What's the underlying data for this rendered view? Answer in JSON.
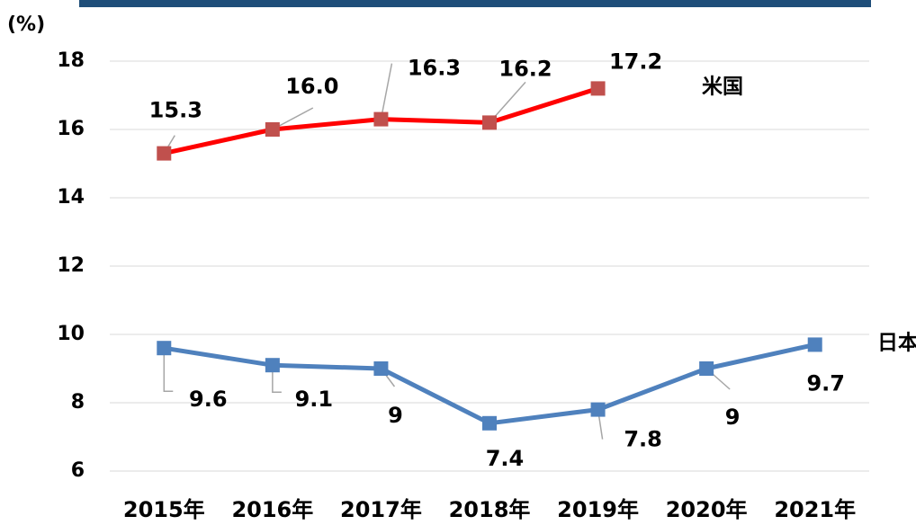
{
  "chart_data": {
    "type": "line",
    "y_label": "(%)",
    "categories": [
      "2015年",
      "2016年",
      "2017年",
      "2018年",
      "2019年",
      "2020年",
      "2021年"
    ],
    "series": [
      {
        "name": "米国",
        "color": "#ff0000",
        "marker_color": "#c0504d",
        "values": [
          15.3,
          16.0,
          16.3,
          16.2,
          17.2,
          null,
          null
        ],
        "value_labels": [
          "15.3",
          "16.0",
          "16.3",
          "16.2",
          "17.2",
          null,
          null
        ]
      },
      {
        "name": "日本",
        "color": "#4f81bd",
        "marker_color": "#4f81bd",
        "values": [
          9.6,
          9.1,
          9,
          7.4,
          7.8,
          9,
          9.7
        ]
      }
    ],
    "ylim": [
      6,
      18
    ],
    "yticks": [
      6,
      8,
      10,
      12,
      14,
      16,
      18
    ],
    "grid": true
  }
}
